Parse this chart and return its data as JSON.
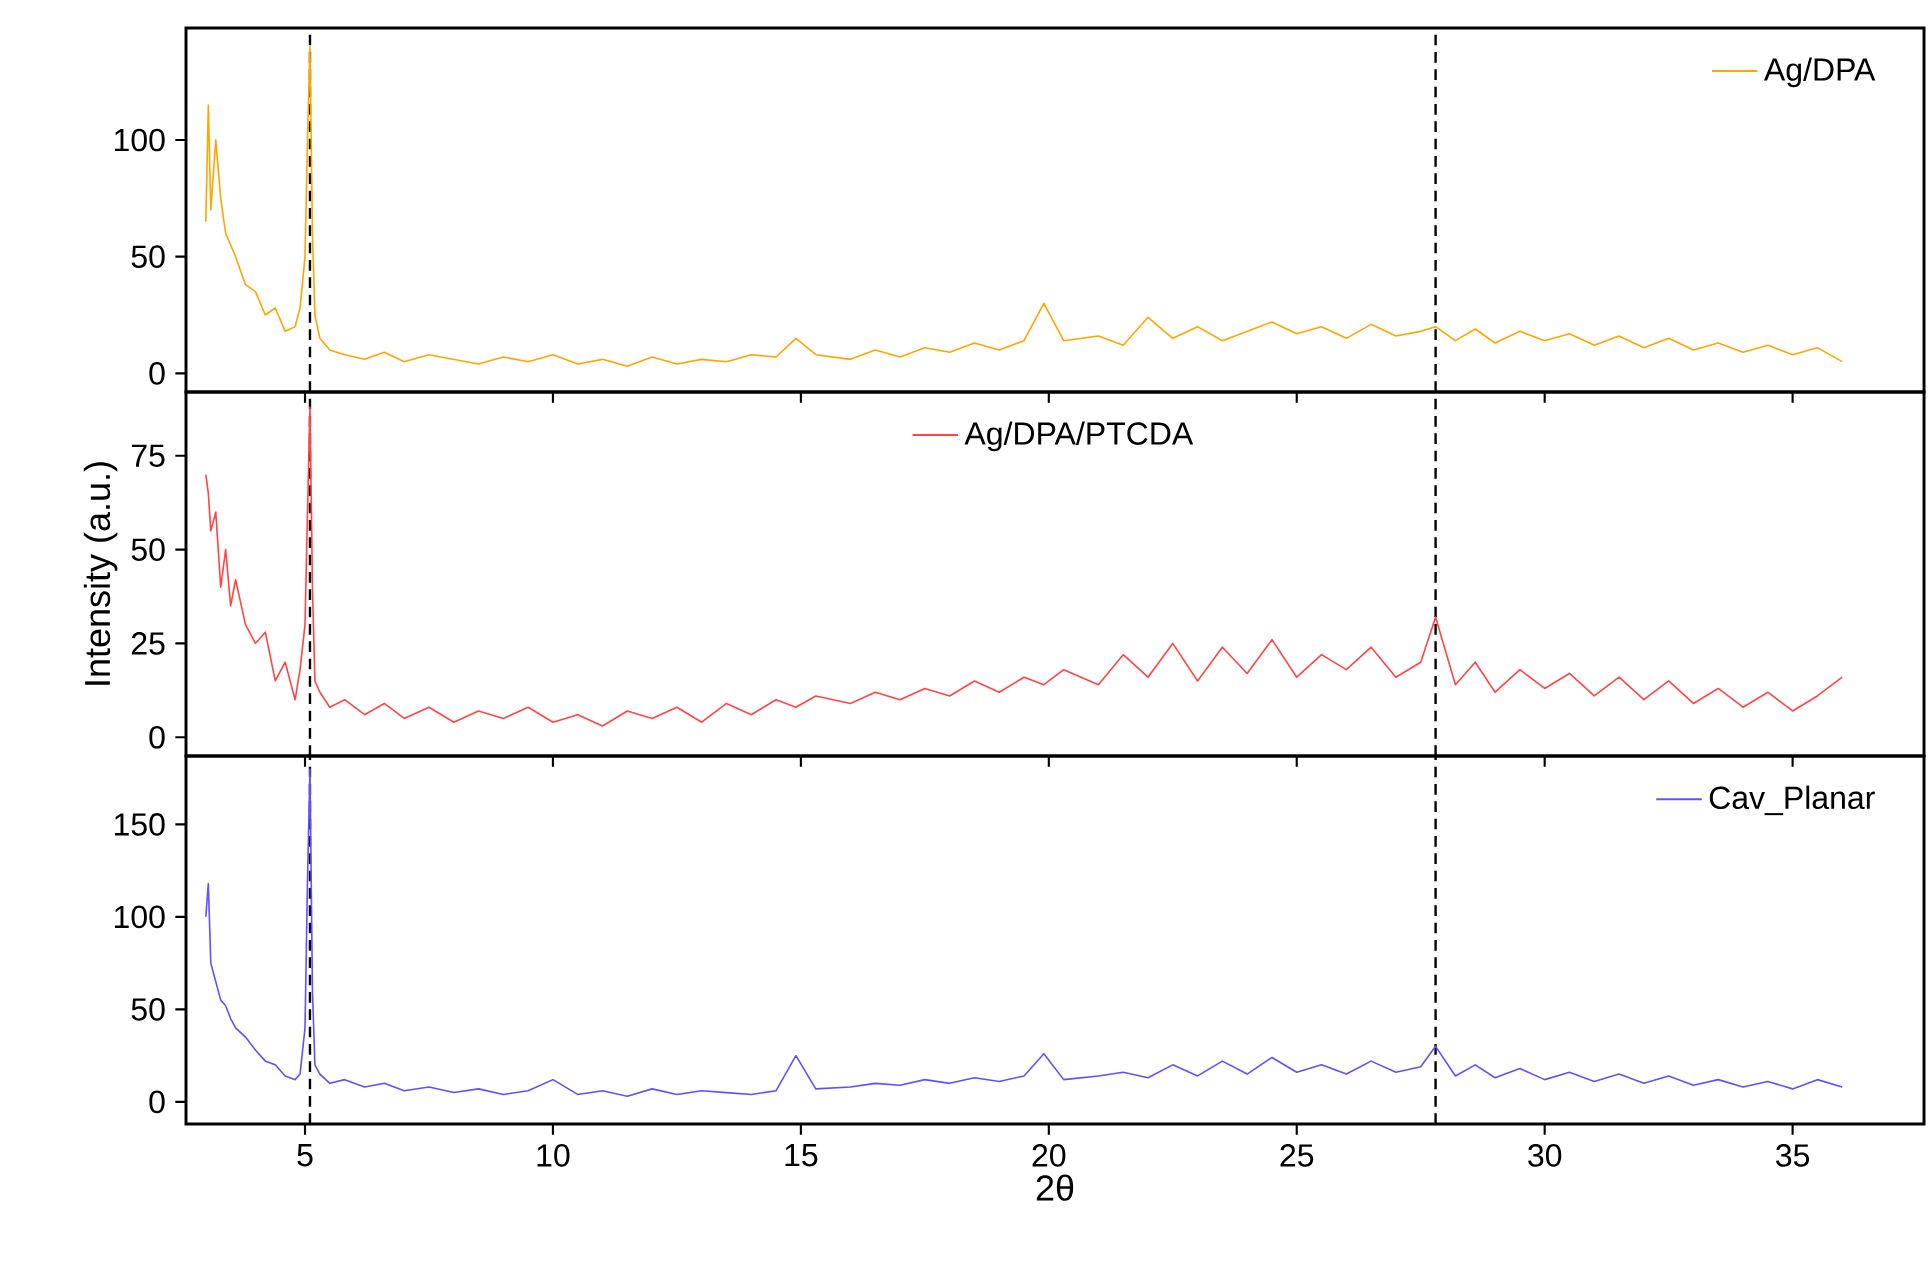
{
  "chart_data": [
    {
      "type": "line",
      "x": [
        3.0,
        3.05,
        3.1,
        3.2,
        3.3,
        3.4,
        3.5,
        3.6,
        3.8,
        4.0,
        4.2,
        4.4,
        4.6,
        4.8,
        4.9,
        5.0,
        5.05,
        5.1,
        5.15,
        5.2,
        5.3,
        5.5,
        5.8,
        6.2,
        6.6,
        7.0,
        7.5,
        8.0,
        8.5,
        9.0,
        9.5,
        10.0,
        10.5,
        11,
        11.5,
        12,
        12.5,
        13,
        13.5,
        14,
        14.5,
        14.9,
        15.3,
        16,
        16.5,
        17,
        17.5,
        18,
        18.5,
        19,
        19.5,
        19.9,
        20.3,
        21,
        21.5,
        22,
        22.5,
        23,
        23.5,
        24,
        24.5,
        25,
        25.5,
        26,
        26.5,
        27,
        27.5,
        27.8,
        28.2,
        28.6,
        29,
        29.5,
        30,
        30.5,
        31,
        31.5,
        32,
        32.5,
        33,
        33.5,
        34,
        34.5,
        35,
        35.5,
        36
      ],
      "series": [
        {
          "name": "Ag/DPA",
          "color": "#ffa500",
          "values": [
            65,
            115,
            70,
            100,
            75,
            60,
            55,
            50,
            38,
            35,
            25,
            28,
            18,
            20,
            28,
            50,
            100,
            140,
            60,
            25,
            15,
            10,
            8,
            6,
            9,
            5,
            8,
            6,
            4,
            7,
            5,
            8,
            4,
            6,
            3,
            7,
            4,
            6,
            5,
            8,
            7,
            15,
            8,
            6,
            10,
            7,
            11,
            9,
            13,
            10,
            14,
            30,
            14,
            16,
            12,
            24,
            15,
            20,
            14,
            18,
            22,
            17,
            20,
            15,
            21,
            16,
            18,
            20,
            14,
            19,
            13,
            18,
            14,
            17,
            12,
            16,
            11,
            15,
            10,
            13,
            9,
            12,
            8,
            11,
            5
          ]
        }
      ],
      "xlim": [
        2.6,
        37.65
      ],
      "xticks": [
        5,
        10,
        15,
        20,
        25,
        30,
        35
      ],
      "ylim": [
        -8,
        148
      ],
      "yticks": [
        0,
        50,
        100
      ],
      "tick_labels": "y",
      "legend": "top right",
      "ref_lines": [
        {
          "axis": "x",
          "value": 5.1,
          "color": "#000000",
          "line_style": "dashed"
        },
        {
          "axis": "x",
          "value": 27.8,
          "color": "#000000",
          "line_style": "dashed"
        }
      ]
    },
    {
      "type": "line",
      "x": [
        3.0,
        3.05,
        3.1,
        3.2,
        3.3,
        3.4,
        3.5,
        3.6,
        3.8,
        4.0,
        4.2,
        4.4,
        4.6,
        4.8,
        4.9,
        5.0,
        5.05,
        5.1,
        5.15,
        5.2,
        5.3,
        5.5,
        5.8,
        6.2,
        6.6,
        7.0,
        7.5,
        8.0,
        8.5,
        9.0,
        9.5,
        10.0,
        10.5,
        11,
        11.5,
        12,
        12.5,
        13,
        13.5,
        14,
        14.5,
        14.9,
        15.3,
        16,
        16.5,
        17,
        17.5,
        18,
        18.5,
        19,
        19.5,
        19.9,
        20.3,
        21,
        21.5,
        22,
        22.5,
        23,
        23.5,
        24,
        24.5,
        25,
        25.5,
        26,
        26.5,
        27,
        27.5,
        27.8,
        28.2,
        28.6,
        29,
        29.5,
        30,
        30.5,
        31,
        31.5,
        32,
        32.5,
        33,
        33.5,
        34,
        34.5,
        35,
        35.5,
        36
      ],
      "series": [
        {
          "name": "Ag/DPA/PTCDA",
          "color": "#ff4545",
          "values": [
            70,
            65,
            55,
            60,
            40,
            50,
            35,
            42,
            30,
            25,
            28,
            15,
            20,
            10,
            18,
            30,
            60,
            88,
            40,
            15,
            12,
            8,
            10,
            6,
            9,
            5,
            8,
            4,
            7,
            5,
            8,
            4,
            6,
            3,
            7,
            5,
            8,
            4,
            9,
            6,
            10,
            8,
            11,
            9,
            12,
            10,
            13,
            11,
            15,
            12,
            16,
            14,
            18,
            14,
            22,
            16,
            25,
            15,
            24,
            17,
            26,
            16,
            22,
            18,
            24,
            16,
            20,
            32,
            14,
            20,
            12,
            18,
            13,
            17,
            11,
            16,
            10,
            15,
            9,
            13,
            8,
            12,
            7,
            11,
            16
          ]
        }
      ],
      "ylabel": "Intensity (a.u.)",
      "xlim": [
        2.6,
        37.65
      ],
      "xticks": [
        5,
        10,
        15,
        20,
        25,
        30,
        35
      ],
      "ylim": [
        -5,
        92
      ],
      "yticks": [
        0,
        25,
        50,
        75
      ],
      "tick_labels": "y",
      "legend": "top",
      "ref_lines": [
        {
          "axis": "x",
          "value": 5.1,
          "color": "#000000",
          "line_style": "dashed"
        },
        {
          "axis": "x",
          "value": 27.8,
          "color": "#000000",
          "line_style": "dashed"
        }
      ]
    },
    {
      "type": "line",
      "x": [
        3.0,
        3.05,
        3.1,
        3.2,
        3.3,
        3.4,
        3.5,
        3.6,
        3.8,
        4.0,
        4.2,
        4.4,
        4.6,
        4.8,
        4.9,
        5.0,
        5.05,
        5.1,
        5.15,
        5.2,
        5.3,
        5.5,
        5.8,
        6.2,
        6.6,
        7.0,
        7.5,
        8.0,
        8.5,
        9.0,
        9.5,
        10.0,
        10.5,
        11,
        11.5,
        12,
        12.5,
        13,
        13.5,
        14,
        14.5,
        14.9,
        15.3,
        16,
        16.5,
        17,
        17.5,
        18,
        18.5,
        19,
        19.5,
        19.9,
        20.3,
        21,
        21.5,
        22,
        22.5,
        23,
        23.5,
        24,
        24.5,
        25,
        25.5,
        26,
        26.5,
        27,
        27.5,
        27.8,
        28.2,
        28.6,
        29,
        29.5,
        30,
        30.5,
        31,
        31.5,
        32,
        32.5,
        33,
        33.5,
        34,
        34.5,
        35,
        35.5,
        36
      ],
      "series": [
        {
          "name": "Cav_Planar",
          "color": "#6050ff",
          "values": [
            100,
            118,
            75,
            65,
            55,
            52,
            45,
            40,
            35,
            28,
            22,
            20,
            14,
            12,
            15,
            40,
            120,
            180,
            60,
            20,
            15,
            10,
            12,
            8,
            10,
            6,
            8,
            5,
            7,
            4,
            6,
            12,
            4,
            6,
            3,
            7,
            4,
            6,
            5,
            4,
            6,
            25,
            7,
            8,
            10,
            9,
            12,
            10,
            13,
            11,
            14,
            26,
            12,
            14,
            16,
            13,
            20,
            14,
            22,
            15,
            24,
            16,
            20,
            15,
            22,
            16,
            19,
            30,
            14,
            20,
            13,
            18,
            12,
            16,
            11,
            15,
            10,
            14,
            9,
            12,
            8,
            11,
            7,
            12,
            8
          ]
        }
      ],
      "xlabel": "2θ",
      "xlim": [
        2.6,
        37.65
      ],
      "xticks": [
        5,
        10,
        15,
        20,
        25,
        30,
        35
      ],
      "ylim": [
        -12,
        187
      ],
      "yticks": [
        0,
        50,
        100,
        150
      ],
      "legend": "top right",
      "ref_lines": [
        {
          "axis": "x",
          "value": 5.1,
          "color": "#000000",
          "line_style": "dashed"
        },
        {
          "axis": "x",
          "value": 27.8,
          "color": "#000000",
          "line_style": "dashed"
        }
      ]
    }
  ]
}
